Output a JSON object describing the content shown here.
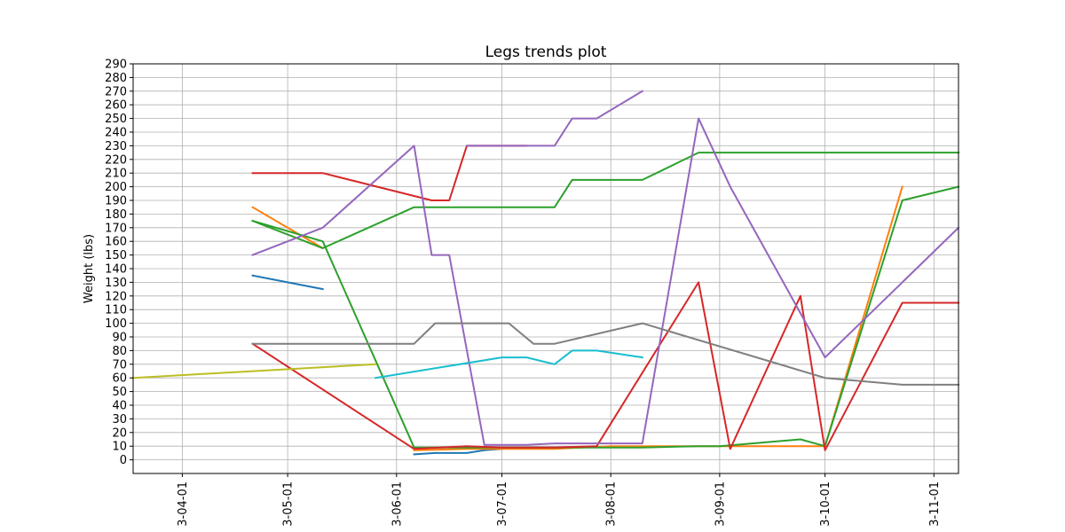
{
  "chart_data": {
    "type": "line",
    "title": "Legs trends plot",
    "xlabel": "",
    "ylabel": "Weight (lbs)",
    "grid": true,
    "legend": "none",
    "ylim": [
      -10,
      290
    ],
    "xlim": [
      "2023-03-18",
      "2023-11-08"
    ],
    "x_ticks": [
      "2023-04-01",
      "2023-05-01",
      "2023-06-01",
      "2023-07-01",
      "2023-08-01",
      "2023-09-01",
      "2023-10-01",
      "2023-11-01"
    ],
    "x_tick_labels": [
      "3-04-01",
      "3-05-01",
      "3-06-01",
      "3-07-01",
      "3-08-01",
      "3-09-01",
      "3-10-01",
      "3-11-01"
    ],
    "y_ticks": [
      0,
      10,
      20,
      30,
      40,
      50,
      60,
      70,
      80,
      90,
      100,
      110,
      120,
      130,
      140,
      150,
      160,
      170,
      180,
      190,
      200,
      210,
      220,
      230,
      240,
      250,
      260,
      270,
      280,
      290
    ],
    "series": [
      {
        "color": "#1f77b4",
        "points": [
          [
            "2023-04-21",
            135
          ],
          [
            "2023-05-11",
            125
          ]
        ]
      },
      {
        "color": "#1f77b4",
        "points": [
          [
            "2023-06-06",
            4
          ],
          [
            "2023-06-12",
            5
          ],
          [
            "2023-06-21",
            5
          ],
          [
            "2023-06-26",
            7
          ],
          [
            "2023-07-01",
            8
          ]
        ]
      },
      {
        "color": "#ff7f0e",
        "points": [
          [
            "2023-04-21",
            185
          ],
          [
            "2023-05-11",
            155
          ]
        ]
      },
      {
        "color": "#ff7f0e",
        "points": [
          [
            "2023-06-06",
            7
          ],
          [
            "2023-06-21",
            8
          ],
          [
            "2023-07-01",
            8
          ],
          [
            "2023-07-16",
            8
          ],
          [
            "2023-08-01",
            10
          ],
          [
            "2023-09-01",
            10
          ],
          [
            "2023-10-01",
            10
          ],
          [
            "2023-10-23",
            200
          ]
        ]
      },
      {
        "color": "#2ca02c",
        "points": [
          [
            "2023-04-21",
            175
          ],
          [
            "2023-05-11",
            160
          ],
          [
            "2023-06-06",
            9
          ],
          [
            "2023-06-21",
            9
          ],
          [
            "2023-07-01",
            9
          ],
          [
            "2023-07-16",
            9
          ],
          [
            "2023-08-10",
            9
          ],
          [
            "2023-08-26",
            10
          ],
          [
            "2023-09-01",
            10
          ],
          [
            "2023-09-24",
            15
          ],
          [
            "2023-10-01",
            10
          ],
          [
            "2023-10-23",
            190
          ],
          [
            "2023-11-08",
            200
          ]
        ]
      },
      {
        "color": "#2ca02c",
        "points": [
          [
            "2023-04-21",
            175
          ],
          [
            "2023-05-11",
            155
          ],
          [
            "2023-06-06",
            185
          ],
          [
            "2023-06-21",
            185
          ],
          [
            "2023-07-01",
            185
          ],
          [
            "2023-07-16",
            185
          ],
          [
            "2023-07-21",
            205
          ],
          [
            "2023-08-10",
            205
          ],
          [
            "2023-08-26",
            225
          ],
          [
            "2023-09-01",
            225
          ],
          [
            "2023-10-01",
            225
          ],
          [
            "2023-11-08",
            225
          ]
        ]
      },
      {
        "color": "#d62728",
        "points": [
          [
            "2023-04-21",
            210
          ],
          [
            "2023-05-11",
            210
          ],
          [
            "2023-06-11",
            190
          ],
          [
            "2023-06-16",
            190
          ],
          [
            "2023-06-21",
            230
          ],
          [
            "2023-07-01",
            230
          ],
          [
            "2023-07-08",
            230
          ]
        ]
      },
      {
        "color": "#d62728",
        "points": [
          [
            "2023-04-21",
            85
          ],
          [
            "2023-06-06",
            8
          ],
          [
            "2023-06-21",
            10
          ],
          [
            "2023-07-01",
            9
          ],
          [
            "2023-07-16",
            9
          ],
          [
            "2023-07-28",
            10
          ],
          [
            "2023-08-26",
            130
          ],
          [
            "2023-09-04",
            8
          ],
          [
            "2023-09-24",
            120
          ],
          [
            "2023-10-01",
            7
          ],
          [
            "2023-10-23",
            115
          ],
          [
            "2023-11-08",
            115
          ]
        ]
      },
      {
        "color": "#9467bd",
        "points": [
          [
            "2023-04-21",
            150
          ],
          [
            "2023-05-11",
            170
          ],
          [
            "2023-06-06",
            230
          ],
          [
            "2023-06-11",
            150
          ],
          [
            "2023-06-16",
            150
          ],
          [
            "2023-06-26",
            11
          ],
          [
            "2023-07-01",
            11
          ],
          [
            "2023-07-08",
            11
          ],
          [
            "2023-07-16",
            12
          ],
          [
            "2023-07-28",
            12
          ],
          [
            "2023-08-10",
            12
          ],
          [
            "2023-08-26",
            250
          ],
          [
            "2023-09-04",
            200
          ],
          [
            "2023-10-01",
            75
          ],
          [
            "2023-11-08",
            170
          ]
        ]
      },
      {
        "color": "#9467bd",
        "points": [
          [
            "2023-06-21",
            230
          ],
          [
            "2023-07-01",
            230
          ],
          [
            "2023-07-16",
            230
          ],
          [
            "2023-07-21",
            250
          ],
          [
            "2023-07-28",
            250
          ],
          [
            "2023-08-10",
            270
          ]
        ]
      },
      {
        "color": "#7f7f7f",
        "points": [
          [
            "2023-04-21",
            85
          ],
          [
            "2023-05-11",
            85
          ],
          [
            "2023-06-06",
            85
          ],
          [
            "2023-06-12",
            100
          ],
          [
            "2023-06-21",
            100
          ],
          [
            "2023-07-03",
            100
          ],
          [
            "2023-07-10",
            85
          ],
          [
            "2023-07-16",
            85
          ],
          [
            "2023-08-10",
            100
          ],
          [
            "2023-10-01",
            60
          ],
          [
            "2023-10-23",
            55
          ],
          [
            "2023-11-08",
            55
          ]
        ]
      },
      {
        "color": "#bcbd22",
        "points": [
          [
            "2023-03-18",
            60
          ],
          [
            "2023-05-26",
            70
          ]
        ]
      },
      {
        "color": "#17becf",
        "points": [
          [
            "2023-05-26",
            60
          ],
          [
            "2023-07-01",
            75
          ],
          [
            "2023-07-08",
            75
          ],
          [
            "2023-07-16",
            70
          ],
          [
            "2023-07-21",
            80
          ],
          [
            "2023-07-28",
            80
          ],
          [
            "2023-08-10",
            75
          ]
        ]
      }
    ]
  }
}
